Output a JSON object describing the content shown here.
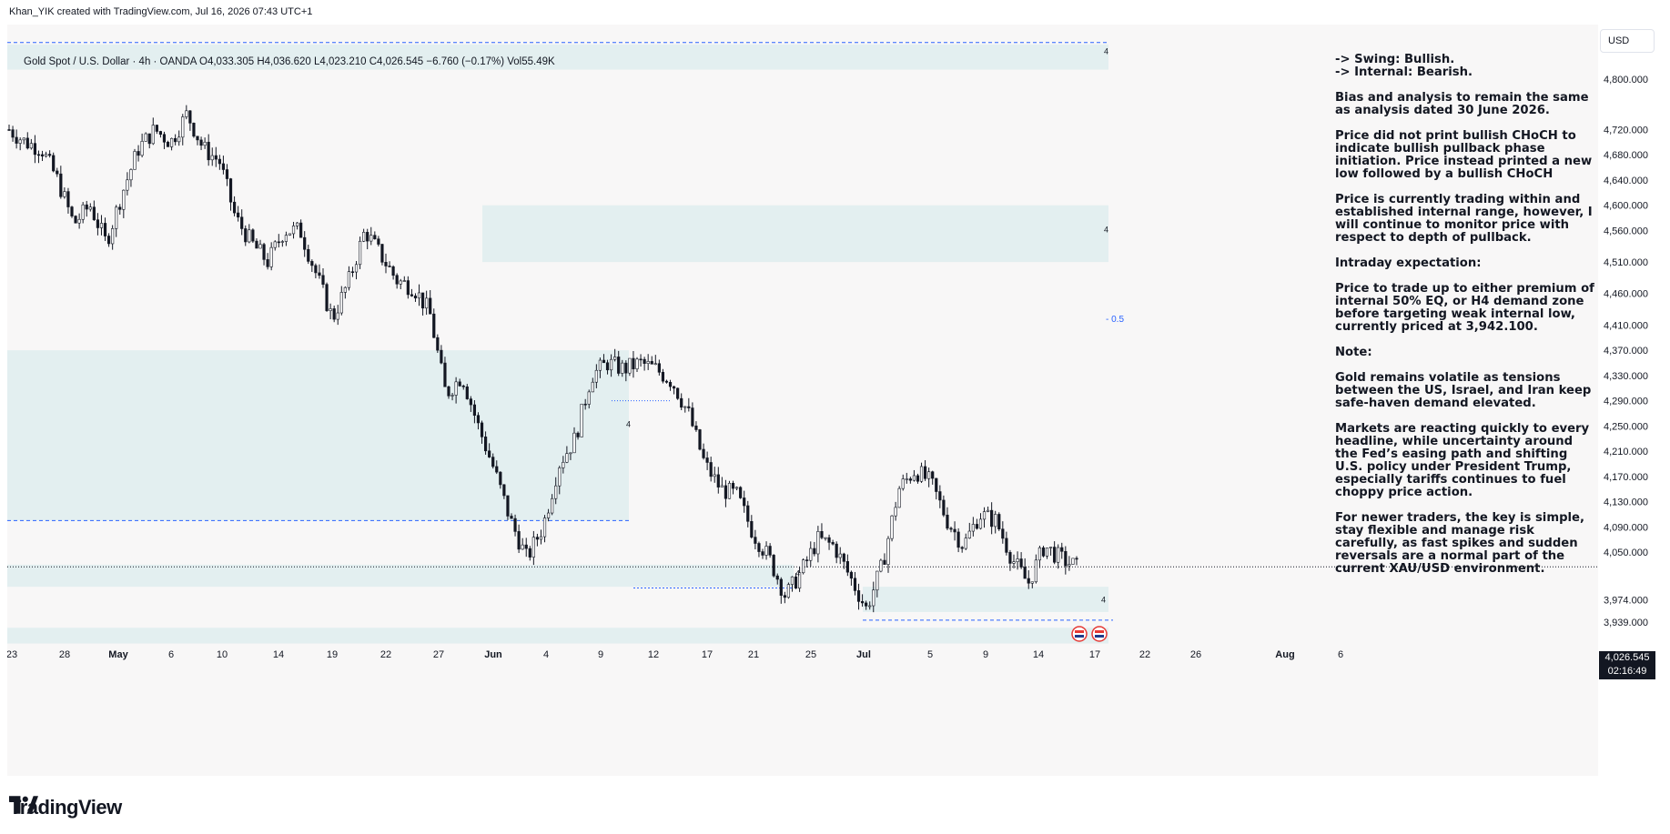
{
  "header": {
    "watermark": "Khan_YIK created with TradingView.com, Jul 16, 2026 07:43 UTC+1"
  },
  "legend": {
    "text": "Gold Spot / U.S. Dollar · 4h · OANDA  O4,033.305  H4,036.620  L4,023.210  C4,026.545  −6.760 (−0.17%)  Vol55.49K"
  },
  "currency_label": "USD",
  "price_tag": {
    "price": "4,026.545",
    "countdown": "02:16:49"
  },
  "annotation": [
    "-> Swing:  Bullish.",
    "-> Internal:  Bearish.",
    "Bias and analysis to remain the same as analysis dated 30 June 2026.",
    "Price did not print bullish CHoCH to indicate bullish pullback phase initiation. Price instead printed a new low followed by a bullish CHoCH",
    "Price is currently trading within and established internal range, however, I will continue to monitor price with respect to depth of pullback.",
    "Intraday expectation:",
    "Price to trade up to either premium of internal 50% EQ, or H4 demand zone before targeting weak internal low, currently priced at 3,942.100.",
    "Note:",
    "Gold remains volatile as tensions between the US, Israel, and Iran keep safe-haven demand elevated.",
    "Markets are reacting quickly to every headline, while uncertainty around the Fed’s easing path and shifting U.S. policy under President Trump, especially tariffs continues to fuel choppy price action.",
    "For newer traders, the key is simple, stay flexible and manage risk carefully, as fast spikes and sudden reversals are a normal part of the current XAU/USD environment."
  ],
  "eq_label": "- 0.5",
  "zone_labels": [
    "4",
    "4",
    "4",
    "4",
    "4"
  ],
  "footer": {
    "brand": "TradingView"
  },
  "colors": {
    "candle": "#131722",
    "zone_fill": "#e3eff0",
    "dashed_line": "#2962ff",
    "background": "#f8f7f7"
  },
  "chart_data": {
    "type": "candlestick",
    "symbol": "Gold Spot / U.S. Dollar",
    "timeframe": "4h",
    "ohlc_last": {
      "open": 4033.305,
      "high": 4036.62,
      "low": 4023.21,
      "close": 4026.545,
      "change": -6.76,
      "change_pct": -0.17,
      "volume": "55.49K"
    },
    "y_ticks": [
      4800,
      4720,
      4680,
      4640,
      4600,
      4560,
      4510,
      4460,
      4410,
      4370,
      4330,
      4290,
      4250,
      4210,
      4170,
      4130,
      4090,
      4050,
      3974,
      3939
    ],
    "y_tick_labels": [
      "4,800.000",
      "4,720.000",
      "4,680.000",
      "4,640.000",
      "4,600.000",
      "4,560.000",
      "4,510.000",
      "4,460.000",
      "4,410.000",
      "4,370.000",
      "4,330.000",
      "4,290.000",
      "4,250.000",
      "4,210.000",
      "4,170.000",
      "4,130.000",
      "4,090.000",
      "4,050.000",
      "3,974.000",
      "3,939.000"
    ],
    "x_ticks": [
      "23",
      "28",
      "May",
      "6",
      "10",
      "14",
      "19",
      "22",
      "27",
      "Jun",
      "4",
      "9",
      "12",
      "17",
      "21",
      "25",
      "Jul",
      "5",
      "9",
      "14",
      "17",
      "22",
      "26",
      "Aug",
      "6"
    ],
    "close_path": [
      [
        "Apr 23",
        4720
      ],
      [
        "Apr 24",
        4700
      ],
      [
        "Apr 26",
        4690
      ],
      [
        "Apr 28",
        4640
      ],
      [
        "Apr 30",
        4570
      ],
      [
        "May 2",
        4600
      ],
      [
        "May 4",
        4540
      ],
      [
        "May 5",
        4620
      ],
      [
        "May 7",
        4690
      ],
      [
        "May 9",
        4720
      ],
      [
        "May 11",
        4700
      ],
      [
        "May 13",
        4745
      ],
      [
        "May 15",
        4690
      ],
      [
        "May 17",
        4670
      ],
      [
        "May 19",
        4580
      ],
      [
        "May 21",
        4540
      ],
      [
        "May 23",
        4510
      ],
      [
        "May 25",
        4560
      ],
      [
        "May 27",
        4560
      ],
      [
        "May 29",
        4490
      ],
      [
        "May 30",
        4420
      ],
      [
        "Jun 1",
        4480
      ],
      [
        "Jun 3",
        4560
      ],
      [
        "Jun 5",
        4520
      ],
      [
        "Jun 7",
        4480
      ],
      [
        "Jun 9",
        4470
      ],
      [
        "Jun 10",
        4430
      ],
      [
        "Jun 12",
        4300
      ],
      [
        "Jun 14",
        4330
      ],
      [
        "Jun 15",
        4250
      ],
      [
        "Jun 16",
        4180
      ],
      [
        "Jun 18",
        4100
      ],
      [
        "Jun 19",
        4040
      ],
      [
        "Jun 20",
        4090
      ],
      [
        "Jun 21",
        4190
      ],
      [
        "Jun 22",
        4230
      ],
      [
        "Jun 23",
        4330
      ],
      [
        "Jun 24",
        4350
      ],
      [
        "Jun 25",
        4340
      ],
      [
        "Jun 26",
        4350
      ],
      [
        "Jun 27",
        4340
      ],
      [
        "Jun 28",
        4320
      ],
      [
        "Jun 29",
        4270
      ],
      [
        "Jun 30",
        4190
      ],
      [
        "Jul 1",
        4150
      ],
      [
        "Jul 2",
        4140
      ],
      [
        "Jul 3",
        4080
      ],
      [
        "Jul 4",
        4040
      ],
      [
        "Jul 5",
        3980
      ],
      [
        "Jul 6",
        4020
      ],
      [
        "Jul 7",
        4070
      ],
      [
        "Jul 8",
        4060
      ],
      [
        "Jul 9",
        4010
      ],
      [
        "Jul 10",
        3960
      ],
      [
        "Jul 11",
        4030
      ],
      [
        "Jul 12",
        4150
      ],
      [
        "Jul 13",
        4180
      ],
      [
        "Jul 14",
        4160
      ],
      [
        "Jul 15",
        4100
      ],
      [
        "Jul 16",
        4060
      ],
      [
        "Jul 17",
        4110
      ],
      [
        "Jul 18",
        4100
      ],
      [
        "Jul 19",
        4040
      ],
      [
        "Jul 20",
        4000
      ],
      [
        "Jul 21",
        4060
      ],
      [
        "Jul 22",
        4040
      ],
      [
        "Jul 23",
        4026.545
      ]
    ],
    "zones": [
      {
        "type": "supply",
        "y_top": 4855,
        "y_bottom": 4815
      },
      {
        "type": "supply",
        "y_top": 4600,
        "y_bottom": 4510
      },
      {
        "type": "supply",
        "y_top": 4370,
        "y_bottom": 4100
      },
      {
        "type": "demand",
        "y_top": 4030,
        "y_bottom": 3995
      },
      {
        "type": "demand",
        "y_top": 3995,
        "y_bottom": 3955
      },
      {
        "type": "demand",
        "y_top": 3930,
        "y_bottom": 3905
      }
    ],
    "current_price": 4026.545
  }
}
